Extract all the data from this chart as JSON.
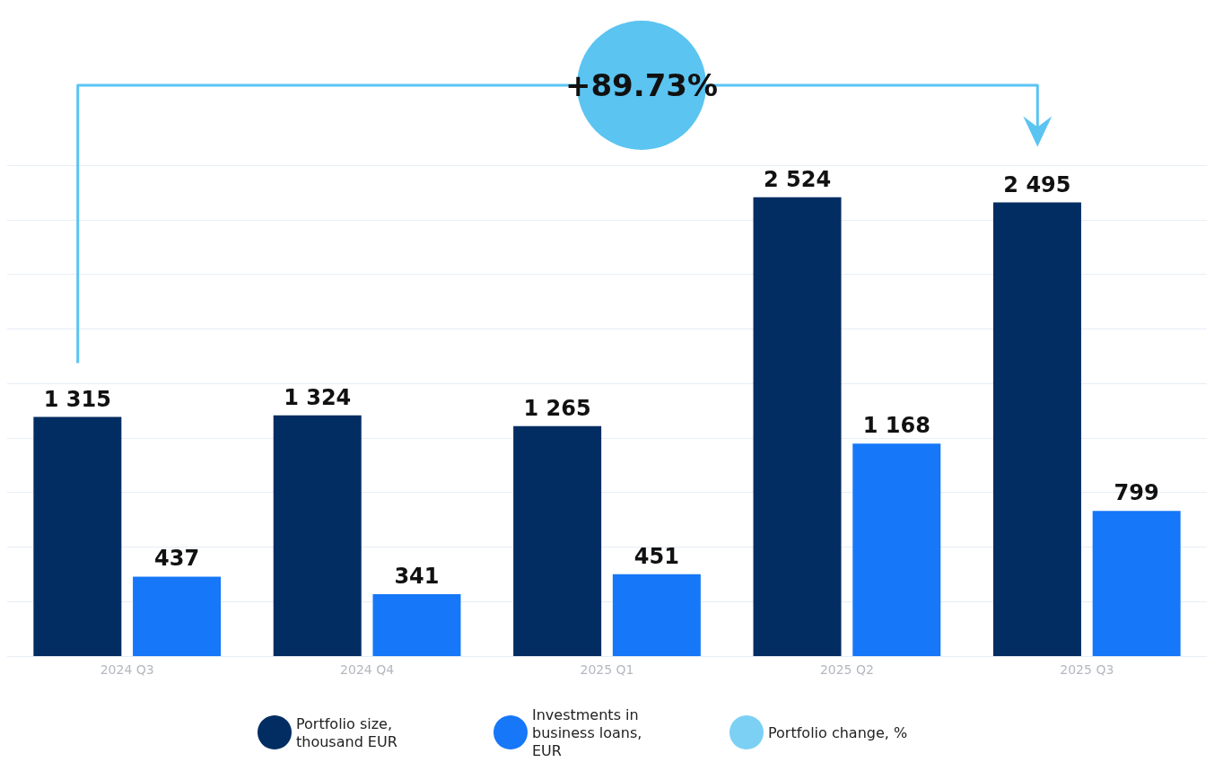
{
  "chart_data": {
    "type": "bar",
    "categories": [
      "2024 Q3",
      "2024 Q4",
      "2025 Q1",
      "2025 Q2",
      "2025 Q3"
    ],
    "series": [
      {
        "name": "Portfolio size, thousand EUR",
        "color": "#022d62",
        "values": [
          1315,
          1324,
          1265,
          2524,
          2495
        ]
      },
      {
        "name": "Investments in business loans, EUR",
        "color": "#1677f8",
        "values": [
          437,
          341,
          451,
          1168,
          799
        ]
      },
      {
        "name": "Portfolio change, %",
        "color": "#5bc4f1",
        "type": "scatter",
        "values": [
          null,
          null,
          null,
          null,
          null
        ]
      }
    ],
    "annotations": [
      "+89.73%"
    ],
    "data_labels": true,
    "grid": "y",
    "tick_labels": "x",
    "legend": "bottom"
  }
}
